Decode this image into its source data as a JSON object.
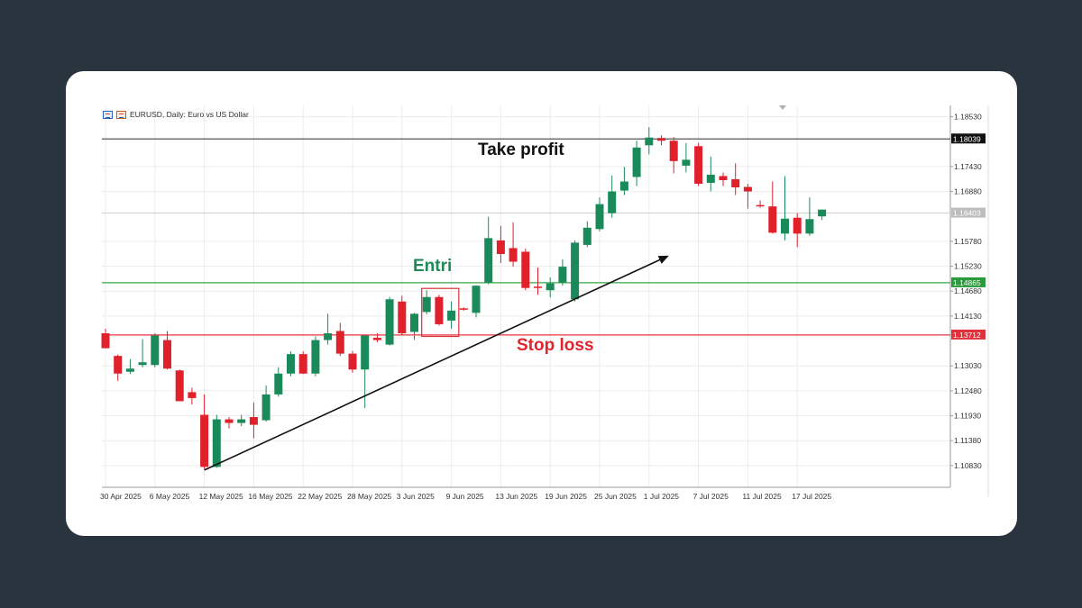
{
  "header": {
    "symbol_text": "EURUSD, Daily:  Euro vs US Dollar",
    "icons": [
      "chart-window-icon",
      "symbol-icon"
    ]
  },
  "annotations": {
    "take_profit": "Take profit",
    "entry": "Entri",
    "stop_loss": "Stop loss"
  },
  "colors": {
    "background": "#29343e",
    "card": "#ffffff",
    "bull": "#1b8a5a",
    "bear": "#e0212c",
    "take_profit_line": "#555555",
    "entry_line": "#35a845",
    "stop_loss_line": "#e8373f",
    "trendline": "#111111",
    "entry_box": "#d9303a"
  },
  "chart_data": {
    "type": "candlestick",
    "symbol": "EURUSD",
    "timeframe": "Daily",
    "title": "EURUSD, Daily:  Euro vs US Dollar",
    "ylim": [
      1.1035,
      1.1878
    ],
    "y_ticks": [
      1.1853,
      1.1743,
      1.1688,
      1.1578,
      1.1523,
      1.1468,
      1.1413,
      1.1303,
      1.1248,
      1.1193,
      1.1138,
      1.1083
    ],
    "y_tick_labels": [
      "1.18530",
      "1.17430",
      "1.16880",
      "1.15780",
      "1.15230",
      "1.14680",
      "1.14130",
      "1.13030",
      "1.12480",
      "1.11930",
      "1.11380",
      "1.10830"
    ],
    "x_ticks": [
      {
        "index": 0,
        "label": "30 Apr 2025"
      },
      {
        "index": 4,
        "label": "6 May 2025"
      },
      {
        "index": 8,
        "label": "12 May 2025"
      },
      {
        "index": 12,
        "label": "16 May 2025"
      },
      {
        "index": 16,
        "label": "22 May 2025"
      },
      {
        "index": 20,
        "label": "28 May 2025"
      },
      {
        "index": 24,
        "label": "3 Jun 2025"
      },
      {
        "index": 28,
        "label": "9 Jun 2025"
      },
      {
        "index": 32,
        "label": "13 Jun 2025"
      },
      {
        "index": 36,
        "label": "19 Jun 2025"
      },
      {
        "index": 40,
        "label": "25 Jun 2025"
      },
      {
        "index": 44,
        "label": "1 Jul 2025"
      },
      {
        "index": 48,
        "label": "7 Jul 2025"
      },
      {
        "index": 52,
        "label": "11 Jul 2025"
      },
      {
        "index": 56,
        "label": "17 Jul 2025"
      }
    ],
    "candles": [
      {
        "o": 1.1375,
        "h": 1.1385,
        "l": 1.1342,
        "c": 1.1342
      },
      {
        "o": 1.1325,
        "h": 1.1328,
        "l": 1.127,
        "c": 1.1286
      },
      {
        "o": 1.129,
        "h": 1.1318,
        "l": 1.1285,
        "c": 1.1297
      },
      {
        "o": 1.1305,
        "h": 1.1362,
        "l": 1.13,
        "c": 1.1311
      },
      {
        "o": 1.1305,
        "h": 1.1375,
        "l": 1.13,
        "c": 1.137
      },
      {
        "o": 1.136,
        "h": 1.138,
        "l": 1.1295,
        "c": 1.1297
      },
      {
        "o": 1.1293,
        "h": 1.1295,
        "l": 1.123,
        "c": 1.1225
      },
      {
        "o": 1.1245,
        "h": 1.1255,
        "l": 1.1218,
        "c": 1.1232
      },
      {
        "o": 1.1195,
        "h": 1.124,
        "l": 1.1075,
        "c": 1.108
      },
      {
        "o": 1.108,
        "h": 1.1195,
        "l": 1.1078,
        "c": 1.1185
      },
      {
        "o": 1.1185,
        "h": 1.119,
        "l": 1.1165,
        "c": 1.1177
      },
      {
        "o": 1.1177,
        "h": 1.1195,
        "l": 1.117,
        "c": 1.1185
      },
      {
        "o": 1.119,
        "h": 1.1222,
        "l": 1.1143,
        "c": 1.1173
      },
      {
        "o": 1.1183,
        "h": 1.126,
        "l": 1.118,
        "c": 1.124
      },
      {
        "o": 1.124,
        "h": 1.13,
        "l": 1.1235,
        "c": 1.1286
      },
      {
        "o": 1.1286,
        "h": 1.1335,
        "l": 1.128,
        "c": 1.1329
      },
      {
        "o": 1.1329,
        "h": 1.1335,
        "l": 1.1285,
        "c": 1.1286
      },
      {
        "o": 1.1286,
        "h": 1.1368,
        "l": 1.128,
        "c": 1.136
      },
      {
        "o": 1.136,
        "h": 1.1418,
        "l": 1.135,
        "c": 1.1375
      },
      {
        "o": 1.138,
        "h": 1.1398,
        "l": 1.1325,
        "c": 1.133
      },
      {
        "o": 1.133,
        "h": 1.1336,
        "l": 1.1288,
        "c": 1.1295
      },
      {
        "o": 1.1295,
        "h": 1.137,
        "l": 1.121,
        "c": 1.137
      },
      {
        "o": 1.1365,
        "h": 1.1375,
        "l": 1.1355,
        "c": 1.136
      },
      {
        "o": 1.135,
        "h": 1.1455,
        "l": 1.1348,
        "c": 1.145
      },
      {
        "o": 1.1445,
        "h": 1.1458,
        "l": 1.137,
        "c": 1.1375
      },
      {
        "o": 1.1378,
        "h": 1.142,
        "l": 1.136,
        "c": 1.1418
      },
      {
        "o": 1.1422,
        "h": 1.147,
        "l": 1.1417,
        "c": 1.1455
      },
      {
        "o": 1.1455,
        "h": 1.146,
        "l": 1.1392,
        "c": 1.1395
      },
      {
        "o": 1.1403,
        "h": 1.1445,
        "l": 1.1385,
        "c": 1.1425
      },
      {
        "o": 1.143,
        "h": 1.1432,
        "l": 1.1425,
        "c": 1.1428
      },
      {
        "o": 1.142,
        "h": 1.148,
        "l": 1.141,
        "c": 1.148
      },
      {
        "o": 1.1487,
        "h": 1.1632,
        "l": 1.1483,
        "c": 1.1585
      },
      {
        "o": 1.158,
        "h": 1.1612,
        "l": 1.153,
        "c": 1.155
      },
      {
        "o": 1.1563,
        "h": 1.162,
        "l": 1.1522,
        "c": 1.1533
      },
      {
        "o": 1.1555,
        "h": 1.1562,
        "l": 1.147,
        "c": 1.1475
      },
      {
        "o": 1.1478,
        "h": 1.152,
        "l": 1.146,
        "c": 1.1475
      },
      {
        "o": 1.147,
        "h": 1.1498,
        "l": 1.1454,
        "c": 1.1485
      },
      {
        "o": 1.1487,
        "h": 1.1538,
        "l": 1.148,
        "c": 1.1522
      },
      {
        "o": 1.145,
        "h": 1.158,
        "l": 1.1445,
        "c": 1.1575
      },
      {
        "o": 1.157,
        "h": 1.1622,
        "l": 1.1565,
        "c": 1.1608
      },
      {
        "o": 1.1605,
        "h": 1.1675,
        "l": 1.16,
        "c": 1.166
      },
      {
        "o": 1.164,
        "h": 1.1723,
        "l": 1.163,
        "c": 1.1688
      },
      {
        "o": 1.169,
        "h": 1.1742,
        "l": 1.168,
        "c": 1.171
      },
      {
        "o": 1.172,
        "h": 1.18,
        "l": 1.17,
        "c": 1.1785
      },
      {
        "o": 1.179,
        "h": 1.183,
        "l": 1.177,
        "c": 1.1807
      },
      {
        "o": 1.1806,
        "h": 1.1812,
        "l": 1.179,
        "c": 1.18
      },
      {
        "o": 1.18,
        "h": 1.1808,
        "l": 1.1728,
        "c": 1.1755
      },
      {
        "o": 1.1745,
        "h": 1.1795,
        "l": 1.173,
        "c": 1.1758
      },
      {
        "o": 1.1788,
        "h": 1.1795,
        "l": 1.17,
        "c": 1.1705
      },
      {
        "o": 1.1707,
        "h": 1.1765,
        "l": 1.1688,
        "c": 1.1725
      },
      {
        "o": 1.1722,
        "h": 1.173,
        "l": 1.17,
        "c": 1.1713
      },
      {
        "o": 1.1715,
        "h": 1.175,
        "l": 1.168,
        "c": 1.1697
      },
      {
        "o": 1.1698,
        "h": 1.1705,
        "l": 1.165,
        "c": 1.1688
      },
      {
        "o": 1.1658,
        "h": 1.1668,
        "l": 1.1652,
        "c": 1.1655
      },
      {
        "o": 1.1655,
        "h": 1.171,
        "l": 1.1595,
        "c": 1.1597
      },
      {
        "o": 1.1595,
        "h": 1.1722,
        "l": 1.158,
        "c": 1.1628
      },
      {
        "o": 1.163,
        "h": 1.164,
        "l": 1.1565,
        "c": 1.1595
      },
      {
        "o": 1.1595,
        "h": 1.1675,
        "l": 1.159,
        "c": 1.1627
      },
      {
        "o": 1.1633,
        "h": 1.1648,
        "l": 1.1625,
        "c": 1.1648
      }
    ],
    "levels": [
      {
        "name": "take profit",
        "price": 1.18039,
        "label": "1.18039"
      },
      {
        "name": "entry",
        "price": 1.14865,
        "label": "1.14865"
      },
      {
        "name": "stop loss",
        "price": 1.13712,
        "label": "1.13712"
      },
      {
        "name": "current",
        "price": 1.16403,
        "label": "1.16403"
      }
    ],
    "trendline": {
      "from": {
        "index": 8,
        "price": 1.1073
      },
      "to": {
        "index": 45.5,
        "price": 1.1545
      }
    },
    "entry_box": {
      "from_index": 25.6,
      "to_index": 28.6,
      "high": 1.1474,
      "low": 1.1368
    }
  }
}
